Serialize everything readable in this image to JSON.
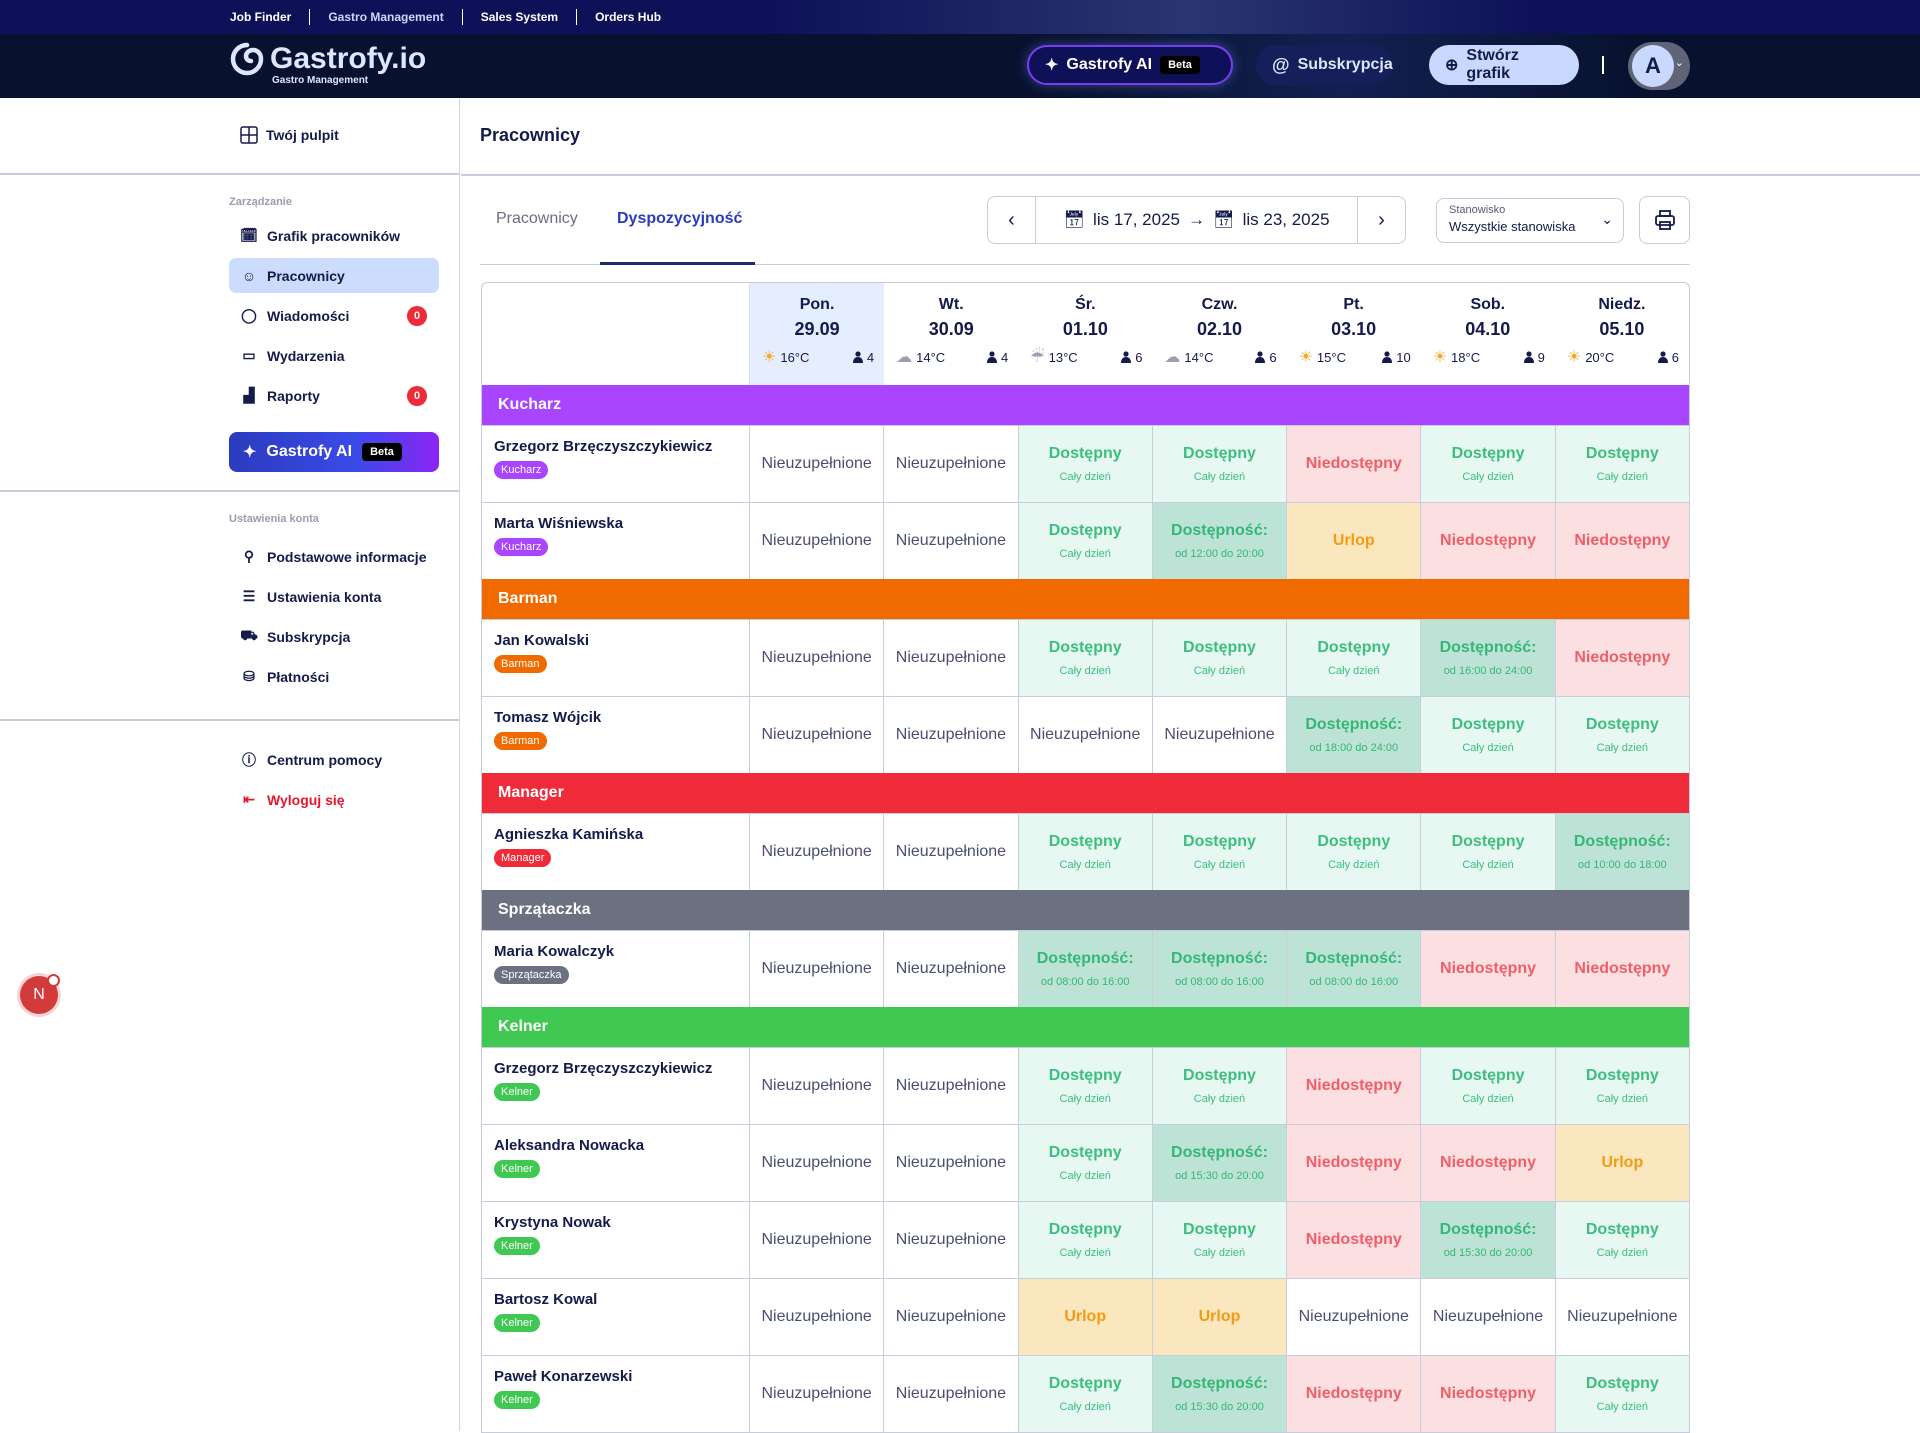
{
  "topnav": [
    "Job Finder",
    "Gastro Management",
    "Sales System",
    "Orders Hub"
  ],
  "header": {
    "brand": "Gastrofy.io",
    "brand_sub": "Gastro Management",
    "ai_label": "Gastrofy AI",
    "beta": "Beta",
    "subscription": "Subskrypcja",
    "create": "Stwórz grafik",
    "avatar": "A"
  },
  "sidebar": {
    "dashboard": "Twój pulpit",
    "section_manage": "Zarządzanie",
    "manage_items": [
      {
        "label": "Grafik pracowników",
        "icon": "calendar-clock-icon"
      },
      {
        "label": "Pracownicy",
        "icon": "smile-icon",
        "active": true
      },
      {
        "label": "Wiadomości",
        "icon": "chat-bubble-icon",
        "badge": "0"
      },
      {
        "label": "Wydarzenia",
        "icon": "calendar-icon"
      },
      {
        "label": "Raporty",
        "icon": "chart-icon",
        "badge": "0"
      }
    ],
    "ai_label": "Gastrofy AI",
    "beta": "Beta",
    "section_account": "Ustawienia konta",
    "account_items": [
      {
        "label": "Podstawowe informacje",
        "icon": "user-icon"
      },
      {
        "label": "Ustawienia konta",
        "icon": "sliders-icon"
      },
      {
        "label": "Subskrypcja",
        "icon": "cart-icon"
      },
      {
        "label": "Płatności",
        "icon": "coins-icon"
      }
    ],
    "help": "Centrum pomocy",
    "logout": "Wyloguj się",
    "fab": "N"
  },
  "main": {
    "title": "Pracownicy",
    "tabs": [
      "Pracownicy",
      "Dyspozycyjność"
    ],
    "date_from": "lis 17, 2025",
    "date_to": "lis 23, 2025",
    "arrow": "→",
    "select_label": "Stanowisko",
    "select_value": "Wszystkie stanowiska"
  },
  "days": [
    {
      "name": "Pon.",
      "date": "29.09",
      "temp": "16°C",
      "weather": "sun",
      "staff": "4",
      "today": true
    },
    {
      "name": "Wt.",
      "date": "30.09",
      "temp": "14°C",
      "weather": "cloud",
      "staff": "4"
    },
    {
      "name": "Śr.",
      "date": "01.10",
      "temp": "13°C",
      "weather": "rain",
      "staff": "6"
    },
    {
      "name": "Czw.",
      "date": "02.10",
      "temp": "14°C",
      "weather": "cloud",
      "staff": "6"
    },
    {
      "name": "Pt.",
      "date": "03.10",
      "temp": "15°C",
      "weather": "sun",
      "staff": "10"
    },
    {
      "name": "Sob.",
      "date": "04.10",
      "temp": "18°C",
      "weather": "sun",
      "staff": "9"
    },
    {
      "name": "Niedz.",
      "date": "05.10",
      "temp": "20°C",
      "weather": "sun",
      "staff": "6"
    }
  ],
  "labels": {
    "none": "Nieuzupełnione",
    "avail": "Dostępny",
    "all_day": "Cały dzień",
    "partial": "Dostępność:",
    "unavail": "Niedostępny",
    "vacation": "Urlop"
  },
  "colors": {
    "Kucharz": "#a944ff",
    "Barman": "#f06a00",
    "Manager": "#ef2b39",
    "Sprzątaczka": "#6b7180",
    "Kelner": "#40c853"
  },
  "groups": [
    {
      "name": "Kucharz",
      "employees": [
        {
          "name": "Grzegorz Brzęczyszczykiewicz",
          "cells": [
            "none",
            "none",
            "avail",
            "avail",
            "unavail",
            "avail",
            "avail"
          ]
        },
        {
          "name": "Marta Wiśniewska",
          "cells": [
            "none",
            "none",
            "avail",
            "od 12:00 do 20:00",
            "vacation",
            "unavail",
            "unavail"
          ]
        }
      ]
    },
    {
      "name": "Barman",
      "employees": [
        {
          "name": "Jan Kowalski",
          "cells": [
            "none",
            "none",
            "avail",
            "avail",
            "avail",
            "od 16:00 do 24:00",
            "unavail"
          ]
        },
        {
          "name": "Tomasz Wójcik",
          "cells": [
            "none",
            "none",
            "none",
            "none",
            "od 18:00 do 24:00",
            "avail",
            "avail"
          ]
        }
      ]
    },
    {
      "name": "Manager",
      "employees": [
        {
          "name": "Agnieszka Kamińska",
          "cells": [
            "none",
            "none",
            "avail",
            "avail",
            "avail",
            "avail",
            "od 10:00 do 18:00"
          ]
        }
      ]
    },
    {
      "name": "Sprzątaczka",
      "employees": [
        {
          "name": "Maria Kowalczyk",
          "cells": [
            "none",
            "none",
            "od 08:00 do 16:00",
            "od 08:00 do 16:00",
            "od 08:00 do 16:00",
            "unavail",
            "unavail"
          ]
        }
      ]
    },
    {
      "name": "Kelner",
      "employees": [
        {
          "name": "Grzegorz Brzęczyszczykiewicz",
          "cells": [
            "none",
            "none",
            "avail",
            "avail",
            "unavail",
            "avail",
            "avail"
          ]
        },
        {
          "name": "Aleksandra Nowacka",
          "cells": [
            "none",
            "none",
            "avail",
            "od 15:30 do 20:00",
            "unavail",
            "unavail",
            "vacation"
          ]
        },
        {
          "name": "Krystyna Nowak",
          "cells": [
            "none",
            "none",
            "avail",
            "avail",
            "unavail",
            "od 15:30 do 20:00",
            "avail"
          ]
        },
        {
          "name": "Bartosz Kowal",
          "cells": [
            "none",
            "none",
            "vacation",
            "vacation",
            "none",
            "none",
            "none"
          ]
        },
        {
          "name": "Paweł Konarzewski",
          "cells": [
            "none",
            "none",
            "avail",
            "od 15:30 do 20:00",
            "unavail",
            "unavail",
            "avail"
          ]
        }
      ]
    }
  ]
}
